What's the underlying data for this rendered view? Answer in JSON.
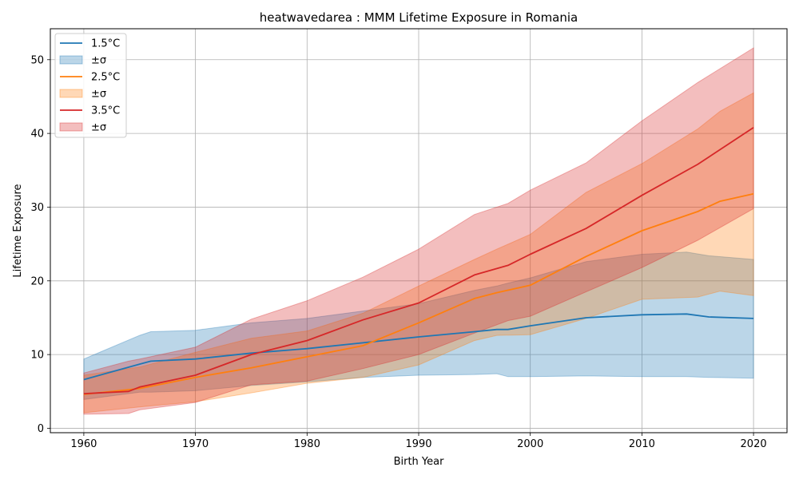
{
  "chart_data": {
    "type": "line",
    "title": "heatwavedarea : MMM Lifetime Exposure in Romania",
    "xlabel": "Birth Year",
    "ylabel": "Lifetime Exposure",
    "xlim": [
      1957,
      2023
    ],
    "ylim": [
      -0.6,
      54.2
    ],
    "xticks": [
      1960,
      1970,
      1980,
      1990,
      2000,
      2010,
      2020
    ],
    "yticks": [
      0,
      10,
      20,
      30,
      40,
      50
    ],
    "grid": true,
    "legend_position": "top-left",
    "legend": [
      "1.5°C",
      "±σ",
      "2.5°C",
      "±σ",
      "3.5°C",
      "±σ"
    ],
    "series": [
      {
        "name": "1.5°C",
        "band_label": "±σ",
        "color": "#1f77b4",
        "band_color": "#1f77b4",
        "x": [
          1960,
          1965,
          1966,
          1970,
          1975,
          1980,
          1985,
          1990,
          1995,
          1997,
          1998,
          2000,
          2005,
          2010,
          2014,
          2016,
          2020
        ],
        "mean": [
          6.6,
          8.7,
          9.1,
          9.4,
          10.2,
          10.8,
          11.6,
          12.4,
          13.1,
          13.4,
          13.4,
          13.9,
          15.0,
          15.4,
          15.5,
          15.1,
          14.9
        ],
        "upper": [
          9.4,
          12.6,
          13.1,
          13.3,
          14.3,
          14.9,
          15.9,
          16.9,
          18.7,
          19.3,
          19.7,
          20.4,
          22.6,
          23.6,
          23.9,
          23.4,
          22.9
        ],
        "lower": [
          3.9,
          4.9,
          4.9,
          5.1,
          5.8,
          6.3,
          6.9,
          7.2,
          7.3,
          7.4,
          7.0,
          7.0,
          7.1,
          7.0,
          7.0,
          6.9,
          6.8
        ]
      },
      {
        "name": "2.5°C",
        "band_label": "±σ",
        "color": "#ff7f0e",
        "band_color": "#ff7f0e",
        "x": [
          1960,
          1965,
          1970,
          1975,
          1980,
          1985,
          1990,
          1995,
          1997,
          2000,
          2005,
          2010,
          2015,
          2017,
          2020
        ],
        "mean": [
          4.6,
          5.4,
          6.9,
          8.2,
          9.7,
          11.2,
          14.3,
          17.6,
          18.4,
          19.4,
          23.3,
          26.8,
          29.4,
          30.8,
          31.8
        ],
        "upper": [
          7.2,
          8.3,
          10.3,
          12.2,
          13.2,
          15.6,
          19.3,
          22.9,
          24.3,
          26.3,
          32.0,
          35.9,
          40.6,
          43.0,
          45.5
        ],
        "lower": [
          2.1,
          2.9,
          3.6,
          4.8,
          6.1,
          6.9,
          8.6,
          11.9,
          12.6,
          12.7,
          14.9,
          17.5,
          17.8,
          18.6,
          18.0
        ]
      },
      {
        "name": "3.5°C",
        "band_label": "±σ",
        "color": "#d62728",
        "band_color": "#d62728",
        "x": [
          1960,
          1964,
          1965,
          1970,
          1975,
          1980,
          1985,
          1990,
          1995,
          1998,
          2000,
          2005,
          2010,
          2015,
          2020
        ],
        "mean": [
          4.7,
          5.0,
          5.6,
          7.2,
          10.0,
          11.9,
          14.7,
          17.0,
          20.8,
          22.1,
          23.6,
          27.1,
          31.6,
          35.8,
          40.8
        ],
        "upper": [
          7.5,
          9.1,
          9.4,
          11.0,
          14.8,
          17.3,
          20.5,
          24.3,
          29.0,
          30.5,
          32.3,
          36.0,
          41.7,
          46.9,
          51.6
        ],
        "lower": [
          1.9,
          2.0,
          2.5,
          3.5,
          5.9,
          6.4,
          8.1,
          10.0,
          12.9,
          14.6,
          15.2,
          18.5,
          21.8,
          25.5,
          29.8
        ]
      }
    ]
  }
}
